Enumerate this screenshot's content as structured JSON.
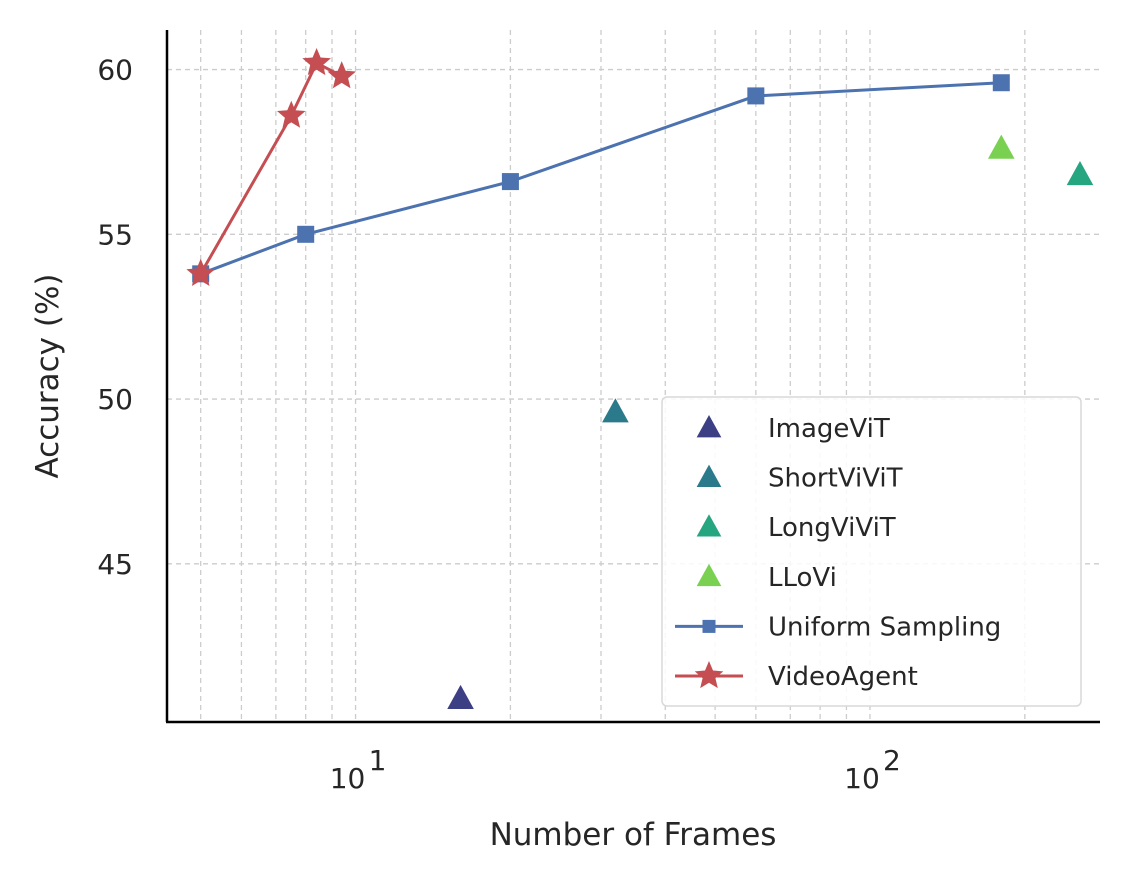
{
  "chart_data": {
    "type": "line",
    "title": "",
    "xlabel": "Number of Frames",
    "ylabel": "Accuracy (%)",
    "xscale": "log",
    "xlim": [
      4.3,
      280
    ],
    "ylim": [
      40.2,
      61.2
    ],
    "xticks": [
      10,
      100
    ],
    "xtick_labels": [
      {
        "base": "10",
        "exp": "1"
      },
      {
        "base": "10",
        "exp": "2"
      }
    ],
    "yticks": [
      45,
      50,
      55,
      60
    ],
    "ytick_labels": [
      "45",
      "50",
      "55",
      "60"
    ],
    "grid": true,
    "legend_position": "lower-right",
    "series": [
      {
        "name": "ImageViT",
        "marker": "triangle",
        "line": false,
        "color": "#3c3f84",
        "points": [
          [
            16,
            40.9
          ]
        ]
      },
      {
        "name": "ShortViViT",
        "marker": "triangle",
        "line": false,
        "color": "#2b7a8c",
        "points": [
          [
            32,
            49.6
          ]
        ]
      },
      {
        "name": "LongViViT",
        "marker": "triangle",
        "line": false,
        "color": "#25a580",
        "points": [
          [
            256,
            56.8
          ]
        ]
      },
      {
        "name": "LLoVi",
        "marker": "triangle",
        "line": false,
        "color": "#7ad151",
        "points": [
          [
            180,
            57.6
          ]
        ]
      },
      {
        "name": "Uniform Sampling",
        "marker": "square",
        "line": true,
        "color": "#4c72b0",
        "points": [
          [
            5,
            53.8
          ],
          [
            8,
            55.0
          ],
          [
            20,
            56.6
          ],
          [
            60,
            59.2
          ],
          [
            180,
            59.6
          ]
        ]
      },
      {
        "name": "VideoAgent",
        "marker": "star",
        "line": true,
        "color": "#c44e52",
        "points": [
          [
            5,
            53.8
          ],
          [
            7.5,
            58.6
          ],
          [
            8.4,
            60.2
          ],
          [
            9.4,
            59.8
          ]
        ]
      }
    ]
  }
}
